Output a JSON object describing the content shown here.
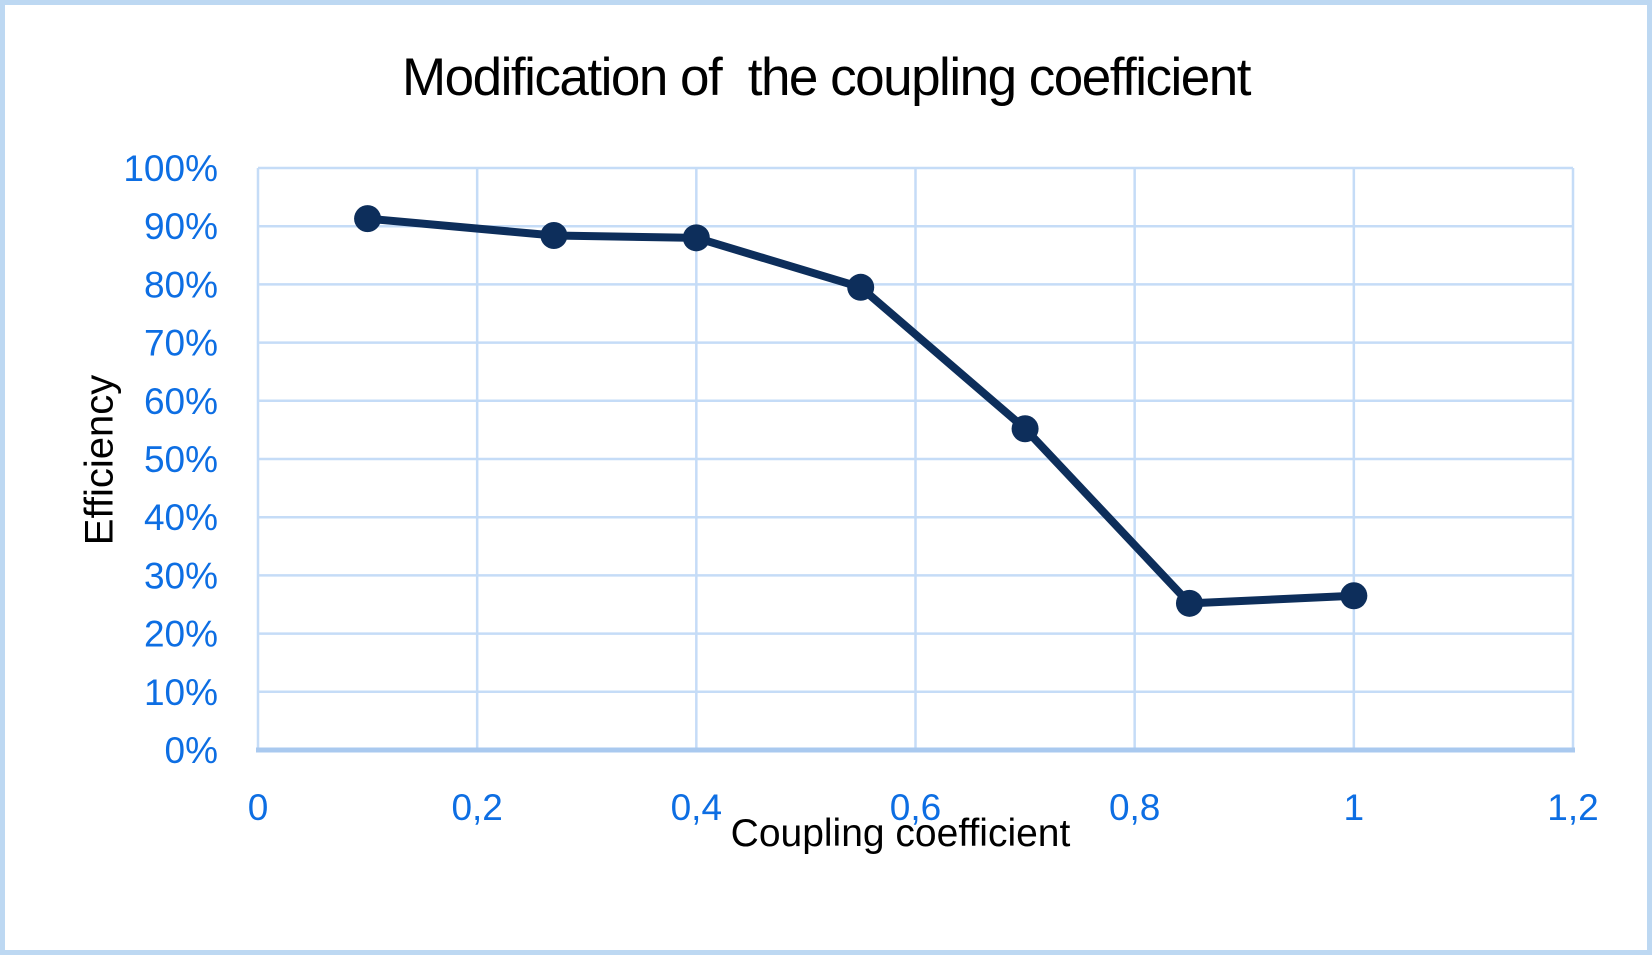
{
  "chart": {
    "title": "Modification of  the coupling coefficient",
    "x_axis_title": "Coupling coefficient",
    "y_axis_title": "Efficiency"
  },
  "chart_data": {
    "type": "line",
    "title": "Modification of  the coupling coefficient",
    "xlabel": "Coupling coefficient",
    "ylabel": "Efficiency",
    "x": [
      0.1,
      0.27,
      0.4,
      0.55,
      0.7,
      0.85,
      1
    ],
    "y_percent": [
      91.3,
      88.4,
      88,
      79.5,
      55.2,
      25.2,
      26.5
    ],
    "xlim": [
      0,
      1.2
    ],
    "ylim_percent": [
      0,
      100
    ],
    "x_ticks": [
      0,
      0.2,
      0.4,
      0.6,
      0.8,
      1,
      1.2
    ],
    "x_tick_labels": [
      "0",
      "0,2",
      "0,4",
      "0,6",
      "0,8",
      "1",
      "1,2"
    ],
    "y_ticks": [
      0,
      10,
      20,
      30,
      40,
      50,
      60,
      70,
      80,
      90,
      100
    ],
    "y_tick_labels": [
      "0%",
      "10%",
      "20%",
      "30%",
      "40%",
      "50%",
      "60%",
      "70%",
      "80%",
      "90%",
      "100%"
    ],
    "grid": true,
    "legend": false,
    "marker": "circle"
  },
  "colors": {
    "line": "#0D2E5B",
    "marker": "#0D2E5B",
    "tick_label": "#0D6EE3",
    "gridline": "#C5DCF7",
    "axis_line": "#A9C9EF",
    "border": "#BDD8F2",
    "title_text": "#000000"
  }
}
